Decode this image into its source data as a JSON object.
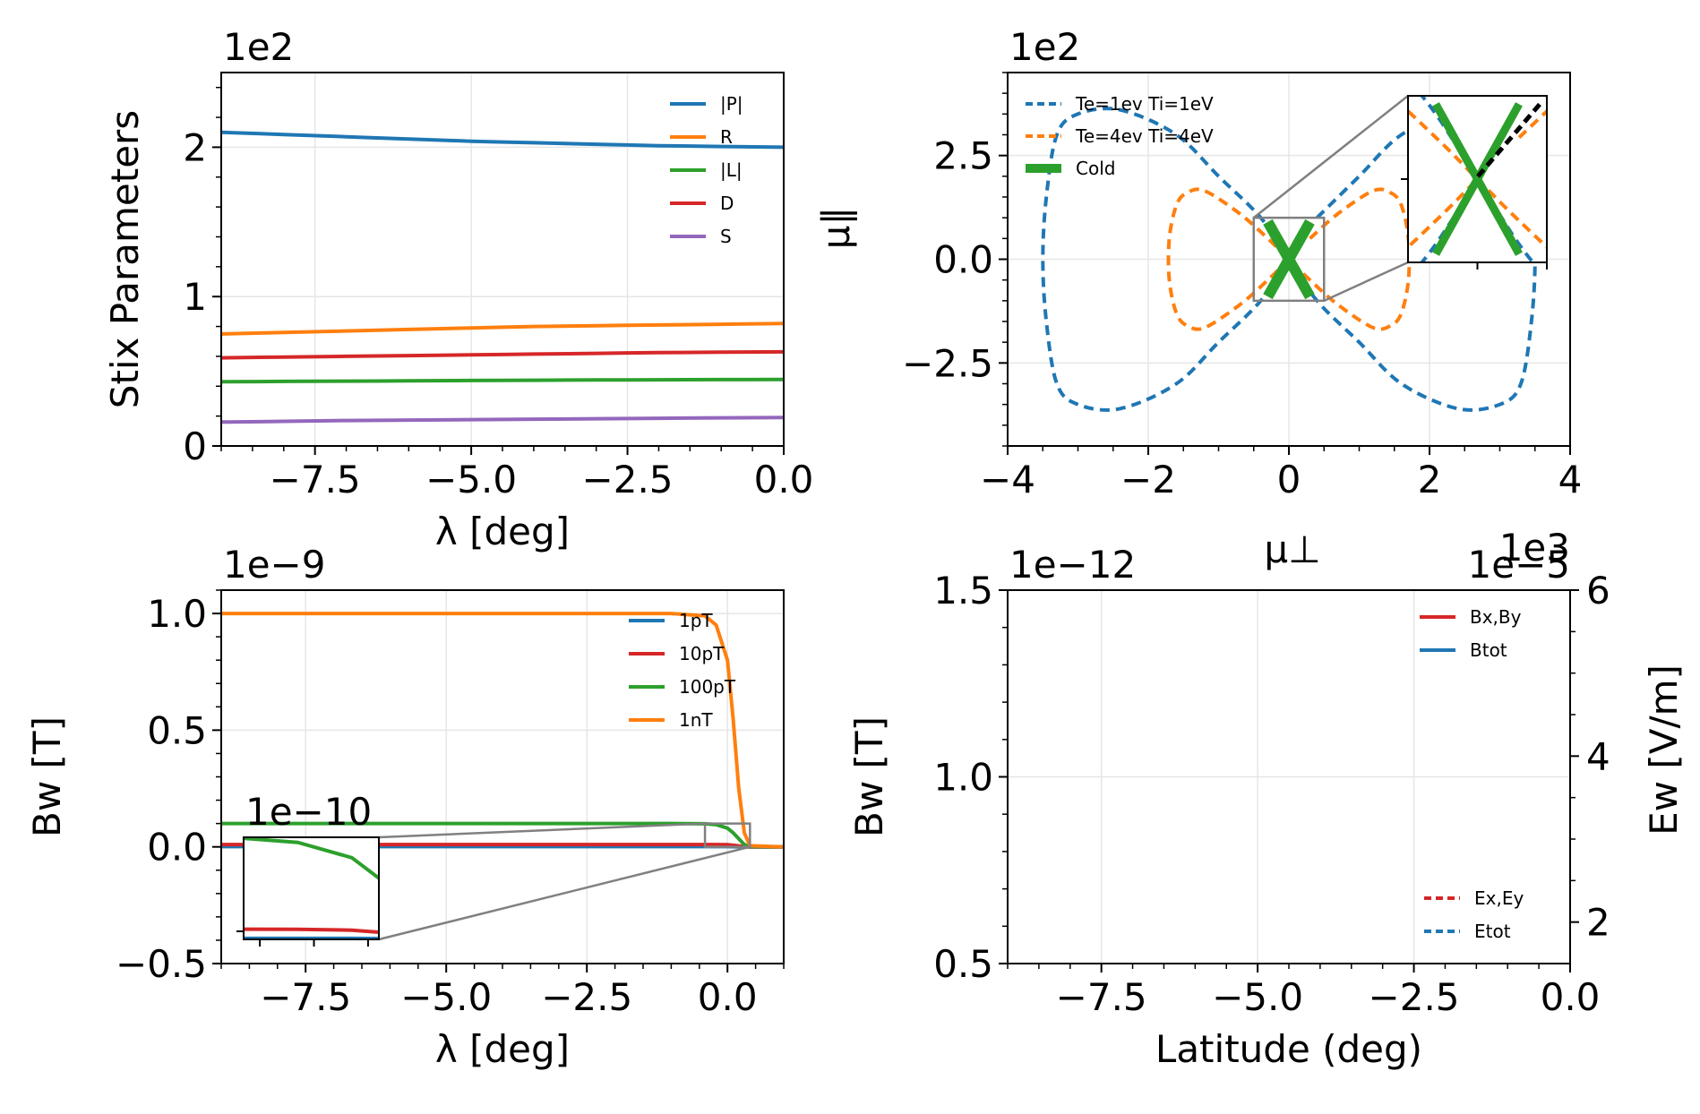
{
  "chart_data": [
    {
      "id": "stix",
      "type": "line",
      "xlabel": "λ [deg]",
      "ylabel": "Stix Parameters",
      "offset_text": "1e2",
      "xlim": [
        -9,
        0
      ],
      "ylim": [
        0,
        2.5
      ],
      "xticks": [
        -7.5,
        -5.0,
        -2.5,
        0.0
      ],
      "xtick_labels": [
        "−7.5",
        "−5.0",
        "−2.5",
        "0.0"
      ],
      "yticks": [
        0,
        1,
        2
      ],
      "ytick_labels": [
        "0",
        "1",
        "2"
      ],
      "grid": true,
      "legend_position": "top-right",
      "x": [
        -9,
        -8,
        -7,
        -6,
        -5,
        -4,
        -3,
        -2,
        -1,
        0
      ],
      "series": [
        {
          "name": "|P|",
          "color": "#1f77b4",
          "values": [
            2.1,
            2.085,
            2.07,
            2.055,
            2.04,
            2.03,
            2.02,
            2.01,
            2.005,
            2.0
          ]
        },
        {
          "name": "R",
          "color": "#ff7f0e",
          "values": [
            0.75,
            0.76,
            0.77,
            0.78,
            0.79,
            0.8,
            0.805,
            0.81,
            0.815,
            0.82
          ]
        },
        {
          "name": "|L|",
          "color": "#2ca02c",
          "values": [
            0.43,
            0.432,
            0.434,
            0.436,
            0.438,
            0.44,
            0.442,
            0.443,
            0.444,
            0.445
          ]
        },
        {
          "name": "D",
          "color": "#d62728",
          "values": [
            0.59,
            0.595,
            0.6,
            0.605,
            0.61,
            0.615,
            0.62,
            0.625,
            0.628,
            0.63
          ]
        },
        {
          "name": "S",
          "color": "#9467bd",
          "values": [
            0.16,
            0.165,
            0.17,
            0.173,
            0.176,
            0.179,
            0.182,
            0.185,
            0.188,
            0.19
          ]
        }
      ]
    },
    {
      "id": "refractive",
      "type": "line",
      "xlabel": "μ⊥",
      "ylabel": "μ∥",
      "offset_text_x": "1e3",
      "offset_text_y": "1e2",
      "xlim": [
        -4,
        4
      ],
      "ylim": [
        -4.5,
        4.5
      ],
      "xticks": [
        -4,
        -2,
        0,
        2,
        4
      ],
      "xtick_labels": [
        "−4",
        "−2",
        "0",
        "2",
        "4"
      ],
      "yticks": [
        -2.5,
        0.0,
        2.5
      ],
      "ytick_labels": [
        "−2.5",
        "0.0",
        "2.5"
      ],
      "grid": true,
      "legend_position": "top-left",
      "series": [
        {
          "name": "Te=1ev Ti=1eV",
          "color": "#1f77b4",
          "dash": true,
          "points": [
            [
              0.4,
              1.0
            ],
            [
              1.0,
              2.0
            ],
            [
              1.6,
              3.0
            ],
            [
              2.4,
              3.6
            ],
            [
              3.0,
              3.5
            ],
            [
              3.3,
              3.0
            ],
            [
              3.45,
              1.5
            ],
            [
              3.5,
              0
            ],
            [
              3.45,
              -1.5
            ],
            [
              3.3,
              -3.0
            ],
            [
              3.0,
              -3.5
            ],
            [
              2.4,
              -3.6
            ],
            [
              1.6,
              -3.0
            ],
            [
              1.0,
              -2.0
            ],
            [
              0.4,
              -1.0
            ],
            [
              0,
              0
            ],
            [
              -0.4,
              1.0
            ],
            [
              -1.0,
              2.0
            ],
            [
              -1.6,
              3.0
            ],
            [
              -2.4,
              3.6
            ],
            [
              -3.0,
              3.5
            ],
            [
              -3.3,
              3.0
            ],
            [
              -3.45,
              1.5
            ],
            [
              -3.5,
              0
            ],
            [
              -3.45,
              -1.5
            ],
            [
              -3.3,
              -3.0
            ],
            [
              -3.0,
              -3.5
            ],
            [
              -2.4,
              -3.6
            ],
            [
              -1.6,
              -3.0
            ],
            [
              -1.0,
              -2.0
            ],
            [
              -0.4,
              -1.0
            ],
            [
              0,
              0
            ]
          ]
        },
        {
          "name": "Te=4ev Ti=4eV",
          "color": "#ff7f0e",
          "dash": true,
          "points": [
            [
              0.3,
              0.5
            ],
            [
              0.7,
              1.1
            ],
            [
              1.2,
              1.65
            ],
            [
              1.45,
              1.6
            ],
            [
              1.6,
              1.3
            ],
            [
              1.7,
              0.5
            ],
            [
              1.7,
              -0.5
            ],
            [
              1.6,
              -1.3
            ],
            [
              1.45,
              -1.6
            ],
            [
              1.2,
              -1.65
            ],
            [
              0.7,
              -1.1
            ],
            [
              0.3,
              -0.5
            ],
            [
              0,
              0
            ],
            [
              -0.3,
              0.5
            ],
            [
              -0.7,
              1.1
            ],
            [
              -1.2,
              1.65
            ],
            [
              -1.45,
              1.6
            ],
            [
              -1.6,
              1.3
            ],
            [
              -1.7,
              0.5
            ],
            [
              -1.7,
              -0.5
            ],
            [
              -1.6,
              -1.3
            ],
            [
              -1.45,
              -1.6
            ],
            [
              -1.2,
              -1.65
            ],
            [
              -0.7,
              -1.1
            ],
            [
              -0.3,
              -0.5
            ],
            [
              0,
              0
            ]
          ]
        },
        {
          "name": "Cold",
          "color": "#2ca02c",
          "dash": false,
          "segments": [
            [
              [
                -0.3,
                0.9
              ],
              [
                0.3,
                -0.9
              ]
            ],
            [
              [
                -0.3,
                -0.9
              ],
              [
                0.3,
                0.9
              ]
            ]
          ]
        }
      ],
      "zoom_box": {
        "x": [
          -0.5,
          0.5
        ],
        "y": [
          -1.0,
          1.0
        ]
      }
    },
    {
      "id": "bw_lambda",
      "type": "line",
      "xlabel": "λ [deg]",
      "ylabel": "Bw [T]",
      "offset_text": "1e−9",
      "inset_offset_text": "1e−10",
      "xlim": [
        -9,
        1
      ],
      "ylim": [
        -0.5,
        1.1
      ],
      "xticks": [
        -7.5,
        -5.0,
        -2.5,
        0.0
      ],
      "xtick_labels": [
        "−7.5",
        "−5.0",
        "−2.5",
        "0.0"
      ],
      "yticks": [
        -0.5,
        0.0,
        0.5,
        1.0
      ],
      "ytick_labels": [
        "−0.5",
        "0.0",
        "0.5",
        "1.0"
      ],
      "grid": true,
      "legend_position": "top-right",
      "x": [
        -9,
        -1,
        -0.4,
        -0.2,
        0,
        0.1,
        0.2,
        0.3,
        0.4,
        1
      ],
      "series": [
        {
          "name": "1pT",
          "color": "#1f77b4",
          "values": [
            0.001,
            0.001,
            0.001,
            0.001,
            0.001,
            0.0008,
            0.0004,
            0.0001,
            0,
            0
          ]
        },
        {
          "name": "10pT",
          "color": "#d62728",
          "values": [
            0.01,
            0.01,
            0.01,
            0.0098,
            0.009,
            0.007,
            0.004,
            0.001,
            0,
            0
          ]
        },
        {
          "name": "100pT",
          "color": "#2ca02c",
          "values": [
            0.1,
            0.1,
            0.099,
            0.095,
            0.08,
            0.06,
            0.035,
            0.01,
            0.001,
            0
          ]
        },
        {
          "name": "1nT",
          "color": "#ff7f0e",
          "values": [
            1.0,
            1.0,
            0.99,
            0.95,
            0.8,
            0.55,
            0.25,
            0.06,
            0.005,
            0
          ]
        }
      ],
      "zoom_box": {
        "x": [
          -0.4,
          0.4
        ],
        "y": [
          0,
          0.1
        ]
      }
    },
    {
      "id": "bw_latitude",
      "type": "line",
      "xlabel": "Latitude (deg)",
      "ylabel": "Bw [T]",
      "ylabel_right": "Ew [V/m]",
      "offset_text": "1e−12",
      "offset_text_right": "1e−5",
      "xlim": [
        -9,
        0
      ],
      "ylim": [
        0.5,
        1.5
      ],
      "ylim_right": [
        1.5,
        6
      ],
      "xticks": [
        -7.5,
        -5.0,
        -2.5,
        0.0
      ],
      "xtick_labels": [
        "−7.5",
        "−5.0",
        "−2.5",
        "0.0"
      ],
      "yticks": [
        0.5,
        1.0,
        1.5
      ],
      "ytick_labels": [
        "0.5",
        "1.0",
        "1.5"
      ],
      "yticks_right": [
        2,
        4,
        6
      ],
      "ytick_labels_right": [
        "2",
        "4",
        "6"
      ],
      "grid": true,
      "legend_position": "top-right",
      "legend_right_position": "bottom-right",
      "series": [
        {
          "name": "Bx,By",
          "color": "#d62728",
          "dash": false,
          "values": []
        },
        {
          "name": "Btot",
          "color": "#1f77b4",
          "dash": false,
          "values": []
        },
        {
          "name": "Ex,Ey",
          "color": "#d62728",
          "dash": true,
          "values": []
        },
        {
          "name": "Etot",
          "color": "#1f77b4",
          "dash": true,
          "values": []
        }
      ]
    }
  ]
}
